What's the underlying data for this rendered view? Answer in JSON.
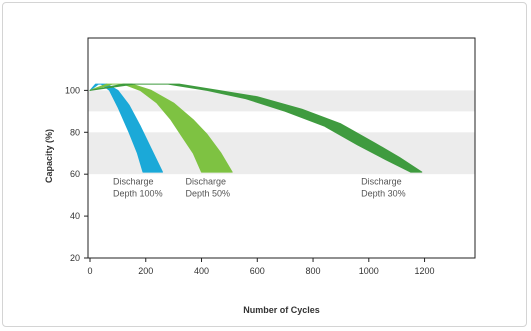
{
  "chart_data": {
    "type": "area",
    "xlabel": "Number of Cycles",
    "ylabel": "Capacity (%)",
    "xlim": [
      0,
      1400
    ],
    "ylim": [
      20,
      125
    ],
    "xticks": [
      0,
      200,
      400,
      600,
      800,
      1000,
      1200
    ],
    "yticks": [
      20,
      40,
      60,
      80,
      100
    ],
    "shaded_bands": [
      [
        60,
        80
      ],
      [
        90,
        100
      ]
    ],
    "band_color": "#ececec",
    "grid": false,
    "series": [
      {
        "color": "#1ba9d8",
        "upper": [
          [
            0,
            100
          ],
          [
            20,
            103
          ],
          [
            40,
            103
          ],
          [
            70,
            100
          ],
          [
            100,
            92
          ],
          [
            140,
            80
          ],
          [
            170,
            70
          ],
          [
            190,
            61
          ]
        ],
        "lower": [
          [
            0,
            100
          ],
          [
            30,
            103
          ],
          [
            60,
            103
          ],
          [
            100,
            100
          ],
          [
            140,
            93
          ],
          [
            180,
            83
          ],
          [
            220,
            72
          ],
          [
            260,
            61
          ]
        ]
      },
      {
        "color": "#7ec242",
        "upper": [
          [
            0,
            100
          ],
          [
            60,
            103
          ],
          [
            120,
            103
          ],
          [
            180,
            100
          ],
          [
            240,
            94
          ],
          [
            290,
            86
          ],
          [
            330,
            78
          ],
          [
            370,
            70
          ],
          [
            400,
            61
          ]
        ],
        "lower": [
          [
            0,
            100
          ],
          [
            80,
            103
          ],
          [
            150,
            103
          ],
          [
            220,
            100
          ],
          [
            300,
            94
          ],
          [
            370,
            86
          ],
          [
            420,
            79
          ],
          [
            470,
            70
          ],
          [
            510,
            61
          ]
        ]
      },
      {
        "color": "#3f9b3f",
        "upper": [
          [
            0,
            100
          ],
          [
            120,
            103
          ],
          [
            280,
            103
          ],
          [
            420,
            100
          ],
          [
            560,
            96
          ],
          [
            700,
            90
          ],
          [
            840,
            83
          ],
          [
            960,
            74
          ],
          [
            1060,
            67
          ],
          [
            1150,
            61
          ]
        ],
        "lower": [
          [
            0,
            100
          ],
          [
            160,
            103
          ],
          [
            320,
            103
          ],
          [
            460,
            100
          ],
          [
            600,
            97
          ],
          [
            760,
            91
          ],
          [
            900,
            84
          ],
          [
            1020,
            75
          ],
          [
            1110,
            68
          ],
          [
            1190,
            61
          ]
        ]
      }
    ],
    "annotations": [
      {
        "lines": [
          "Discharge",
          "Depth 100%"
        ],
        "x": 140,
        "y": 55
      },
      {
        "lines": [
          "Discharge",
          "Depth 50%"
        ],
        "x": 400,
        "y": 55
      },
      {
        "lines": [
          "Discharge",
          "Depth 30%"
        ],
        "x": 1030,
        "y": 55
      }
    ]
  }
}
